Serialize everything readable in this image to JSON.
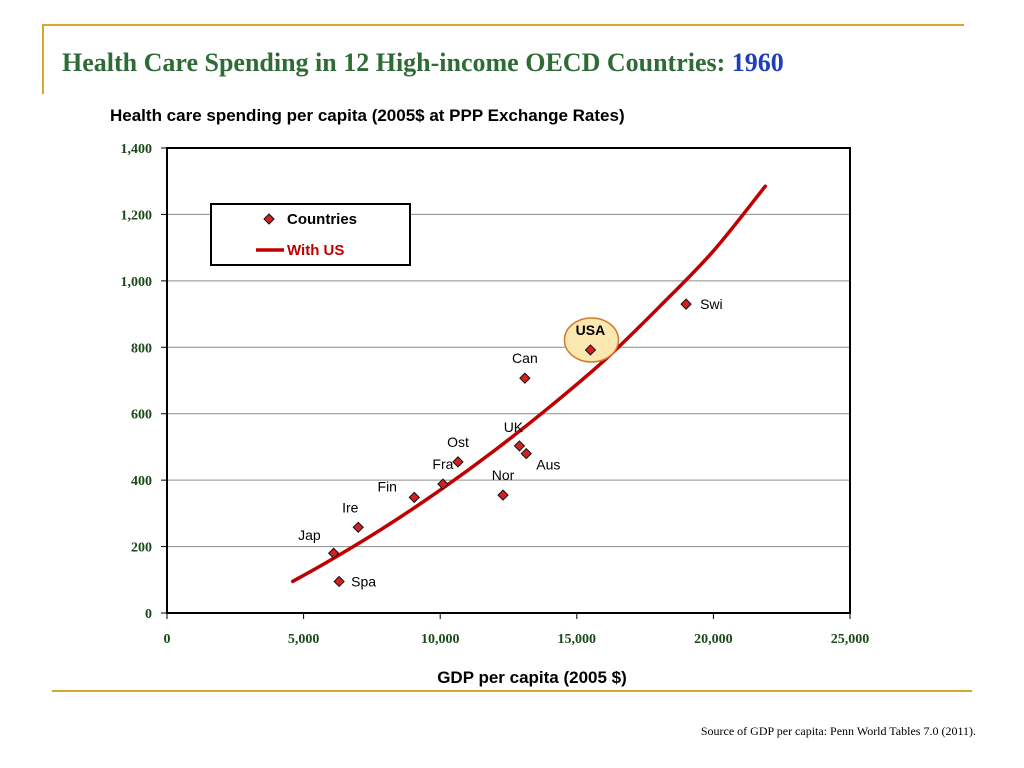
{
  "slide": {
    "title": "Health Care Spending in 12 High-income OECD Countries: ",
    "title_year": "1960",
    "source": "Source of GDP per capita: Penn World Tables 7.0 (2011)."
  },
  "chart_data": {
    "type": "scatter",
    "title": "Health care spending per capita (2005$ at PPP Exchange Rates)",
    "xlabel": "GDP per capita (2005 $)",
    "ylabel": "",
    "xlim": [
      0,
      25000
    ],
    "ylim": [
      0,
      1400
    ],
    "x_ticks": [
      0,
      5000,
      10000,
      15000,
      20000,
      25000
    ],
    "x_tick_labels": [
      "0",
      "5,000",
      "10,000",
      "15,000",
      "20,000",
      "25,000"
    ],
    "y_ticks": [
      0,
      200,
      400,
      600,
      800,
      1000,
      1200,
      1400
    ],
    "y_tick_labels": [
      "0",
      "200",
      "400",
      "600",
      "800",
      "1,000",
      "1,200",
      "1,400"
    ],
    "grid": "horizontal",
    "legend": {
      "placement": "top-left",
      "entries": [
        {
          "label": "Countries",
          "color": "#d42020",
          "marker": "diamond"
        },
        {
          "label": "With US",
          "color": "#c00000",
          "marker": "line"
        }
      ]
    },
    "series": [
      {
        "name": "Countries",
        "color": "#d42020",
        "points": [
          {
            "label": "Jap",
            "x": 6100,
            "y": 180
          },
          {
            "label": "Spa",
            "x": 6300,
            "y": 95
          },
          {
            "label": "Ire",
            "x": 7000,
            "y": 258
          },
          {
            "label": "Fin",
            "x": 9050,
            "y": 348
          },
          {
            "label": "Fra",
            "x": 10100,
            "y": 388
          },
          {
            "label": "Ost",
            "x": 10650,
            "y": 455
          },
          {
            "label": "Nor",
            "x": 12300,
            "y": 355
          },
          {
            "label": "UK",
            "x": 12900,
            "y": 503
          },
          {
            "label": "Aus",
            "x": 13150,
            "y": 480
          },
          {
            "label": "Can",
            "x": 13100,
            "y": 707
          },
          {
            "label": "USA",
            "x": 15500,
            "y": 792,
            "highlight": true
          },
          {
            "label": "Swi",
            "x": 19000,
            "y": 930
          }
        ]
      },
      {
        "name": "With US",
        "type": "line",
        "color": "#c00000",
        "x": [
          4600,
          6000,
          8000,
          10000,
          12000,
          14000,
          16000,
          18000,
          20000,
          21900
        ],
        "y": [
          95,
          160,
          260,
          370,
          490,
          620,
          760,
          920,
          1090,
          1285
        ]
      }
    ]
  }
}
